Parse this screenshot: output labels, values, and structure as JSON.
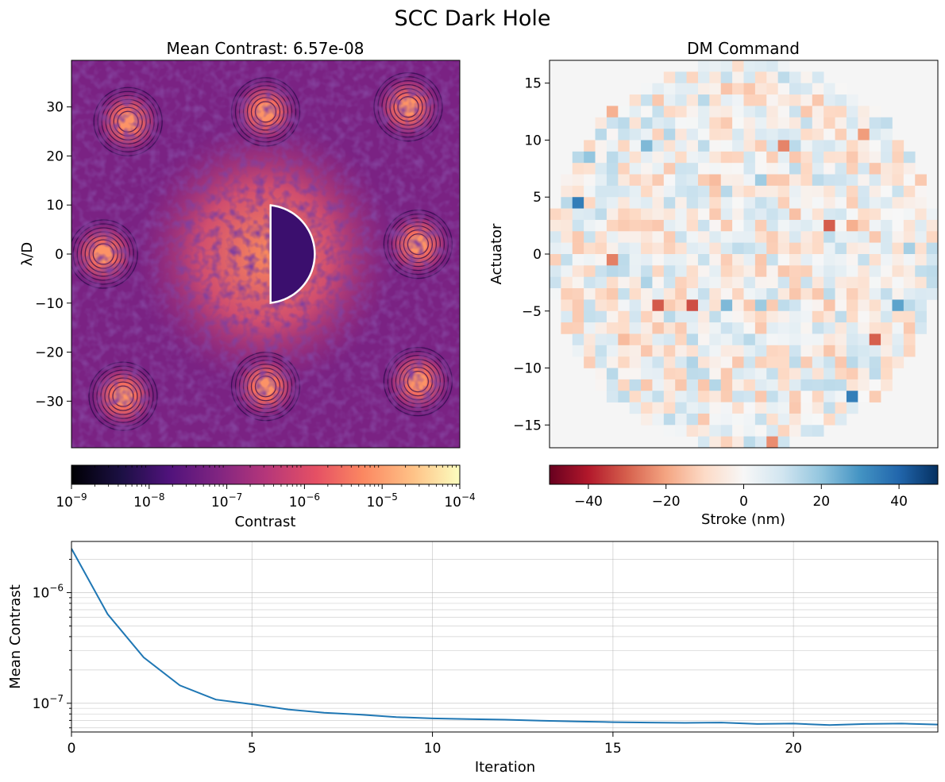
{
  "figure": {
    "suptitle": "SCC Dark Hole"
  },
  "chart_data": [
    {
      "type": "heatmap",
      "title": "Mean Contrast: 6.57e-08",
      "ylabel": "λ/D",
      "xlim": [
        -39.5,
        39.5
      ],
      "ylim": [
        -39.5,
        39.5
      ],
      "yticks": [
        30,
        20,
        10,
        0,
        -10,
        -20,
        -30
      ],
      "ytick_labels": [
        "30",
        "20",
        "10",
        "0",
        "−10",
        "−20",
        "−30"
      ],
      "colormap": "magma",
      "scale": "log",
      "clim": [
        1e-09,
        0.0001
      ],
      "colorbar": {
        "label": "Contrast",
        "ticks": [
          "10^-9",
          "10^-8",
          "10^-7",
          "10^-6",
          "10^-5",
          "10^-4"
        ]
      },
      "satellite_spots": [
        {
          "x": -28,
          "y": 27
        },
        {
          "x": 0,
          "y": 29
        },
        {
          "x": 29,
          "y": 30
        },
        {
          "x": -33,
          "y": 0
        },
        {
          "x": 31,
          "y": 2
        },
        {
          "x": -29,
          "y": -29
        },
        {
          "x": 0,
          "y": -27
        },
        {
          "x": 31,
          "y": -26
        }
      ],
      "dark_hole_region": {
        "shape": "half-annulus",
        "x_min": 1,
        "radius": 10,
        "side": "right"
      }
    },
    {
      "type": "heatmap",
      "title": "DM Command",
      "ylabel": "Actuator",
      "xlim": [
        -17,
        17
      ],
      "ylim": [
        -17,
        17
      ],
      "yticks": [
        15,
        10,
        5,
        0,
        -5,
        -10,
        -15
      ],
      "ytick_labels": [
        "15",
        "10",
        "5",
        "0",
        "−5",
        "−10",
        "−15"
      ],
      "grid_size": 34,
      "colormap": "RdBu",
      "clim": [
        -50,
        50
      ],
      "colorbar": {
        "label": "Stroke (nm)",
        "ticks": [
          -40,
          -20,
          0,
          20,
          40
        ],
        "tick_labels": [
          "−40",
          "−20",
          "0",
          "20",
          "40"
        ]
      }
    },
    {
      "type": "line",
      "xlabel": "Iteration",
      "ylabel": "Mean Contrast",
      "xlim": [
        0,
        24
      ],
      "ylim": [
        5.5e-08,
        2.9e-06
      ],
      "yscale": "log",
      "grid": true,
      "xticks": [
        0,
        5,
        10,
        15,
        20
      ],
      "ytick_labels": [
        "10^-6",
        "10^-7"
      ],
      "series": [
        {
          "x": [
            0,
            1,
            2,
            3,
            4,
            5,
            6,
            7,
            8,
            9,
            10,
            11,
            12,
            13,
            14,
            15,
            16,
            17,
            18,
            19,
            20,
            21,
            22,
            23,
            24
          ],
          "values": [
            2.5e-06,
            6.4e-07,
            2.6e-07,
            1.45e-07,
            1.08e-07,
            9.8e-08,
            8.8e-08,
            8.2e-08,
            7.9e-08,
            7.5e-08,
            7.3e-08,
            7.2e-08,
            7.1e-08,
            6.95e-08,
            6.85e-08,
            6.75e-08,
            6.7e-08,
            6.65e-08,
            6.7e-08,
            6.5e-08,
            6.55e-08,
            6.35e-08,
            6.5e-08,
            6.55e-08,
            6.42e-08
          ],
          "color": "#1f77b4"
        }
      ]
    }
  ]
}
